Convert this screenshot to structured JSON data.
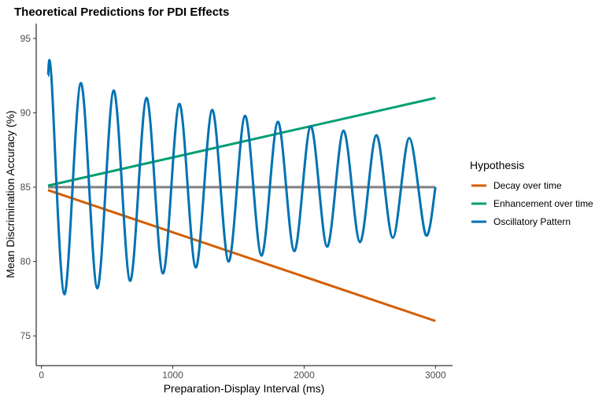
{
  "chart_data": {
    "type": "line",
    "title": "Theoretical Predictions for PDI Effects",
    "xlabel": "Preparation-Display Interval (ms)",
    "ylabel": "Mean Discrimination Accuracy (%)",
    "xlim": [
      -40,
      3130
    ],
    "ylim": [
      73,
      96
    ],
    "xticks": [
      0,
      1000,
      2000,
      3000
    ],
    "yticks": [
      75,
      80,
      85,
      90,
      95
    ],
    "grid": false,
    "legend": {
      "title": "Hypothesis",
      "position": "right",
      "entries": [
        "Decay over time",
        "Enhancement over time",
        "Oscillatory Pattern"
      ]
    },
    "baseline": {
      "value": 85,
      "x": [
        50,
        3000
      ],
      "color": "#808080"
    },
    "series": [
      {
        "name": "Decay over time",
        "color": "#D55E00",
        "x": [
          50,
          3000
        ],
        "y": [
          84.8,
          76.0
        ]
      },
      {
        "name": "Enhancement over time",
        "color": "#009E73",
        "x": [
          50,
          3000
        ],
        "y": [
          85.1,
          91.0
        ]
      },
      {
        "name": "Oscillatory Pattern",
        "color": "#0072B2",
        "x": [
          50,
          75,
          175,
          300,
          425,
          550,
          675,
          800,
          925,
          1050,
          1175,
          1300,
          1425,
          1550,
          1675,
          1800,
          1925,
          2050,
          2175,
          2300,
          2425,
          2550,
          2675,
          2800,
          2925,
          3000
        ],
        "y": [
          92.5,
          92.5,
          77.8,
          92.0,
          78.2,
          91.5,
          78.7,
          91.0,
          79.2,
          90.6,
          79.6,
          90.2,
          80.0,
          89.8,
          80.4,
          89.4,
          80.7,
          89.1,
          81.0,
          88.8,
          81.3,
          88.5,
          81.6,
          88.3,
          81.8,
          85.0
        ]
      }
    ]
  }
}
